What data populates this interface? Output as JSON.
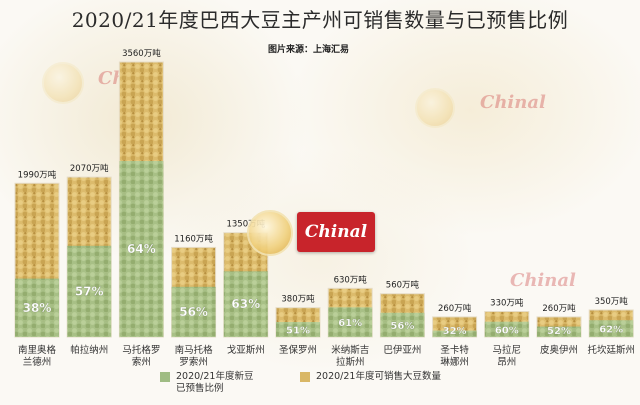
{
  "title": "2020/21年度巴西大豆主产州可销售数量与已预售比例",
  "source": "图片来源：上海汇易",
  "logo_text": "Chinal",
  "legend": {
    "sold": "2020/21年度新豆\n已预售比例",
    "total": "2020/21年度可销售大豆数量"
  },
  "colors": {
    "soy": "#d9b765",
    "soy_dark": "#b8933f",
    "green": "#9fbc83",
    "green_dark": "#7fa263",
    "bar_edge": "#e6dcc6"
  },
  "chart_data": {
    "type": "bar",
    "title": "2020/21年度巴西大豆主产州可销售数量与已预售比例",
    "value_unit": "万吨",
    "series": [
      {
        "name": "2020/21年度可销售大豆数量",
        "values": [
          1990,
          2070,
          3560,
          1160,
          1350,
          380,
          630,
          560,
          260,
          330,
          260,
          350
        ]
      },
      {
        "name": "2020/21年度新豆已预售比例",
        "values": [
          38,
          57,
          64,
          56,
          63,
          51,
          61,
          56,
          32,
          60,
          52,
          62
        ]
      }
    ],
    "categories": [
      "南里奥格\n兰德州",
      "帕拉纳州",
      "马托格罗\n索州",
      "南马托格\n罗索州",
      "戈亚斯州",
      "圣保罗州",
      "米纳斯吉\n拉斯州",
      "巴伊亚州",
      "圣卡特\n琳娜州",
      "马拉尼\n昂州",
      "皮奥伊州",
      "托坎廷斯州"
    ],
    "value_labels": [
      "1990万吨",
      "2070万吨",
      "3560万吨",
      "1160万吨",
      "1350万吨",
      "380万吨",
      "630万吨",
      "560万吨",
      "260万吨",
      "330万吨",
      "260万吨",
      "350万吨"
    ],
    "percent_labels": [
      "38%",
      "57%",
      "64%",
      "56%",
      "63%",
      "51%",
      "61%",
      "56%",
      "32%",
      "60%",
      "52%",
      "62%"
    ],
    "ylim": [
      0,
      3560
    ],
    "grid": false,
    "legend_position": "bottom"
  }
}
